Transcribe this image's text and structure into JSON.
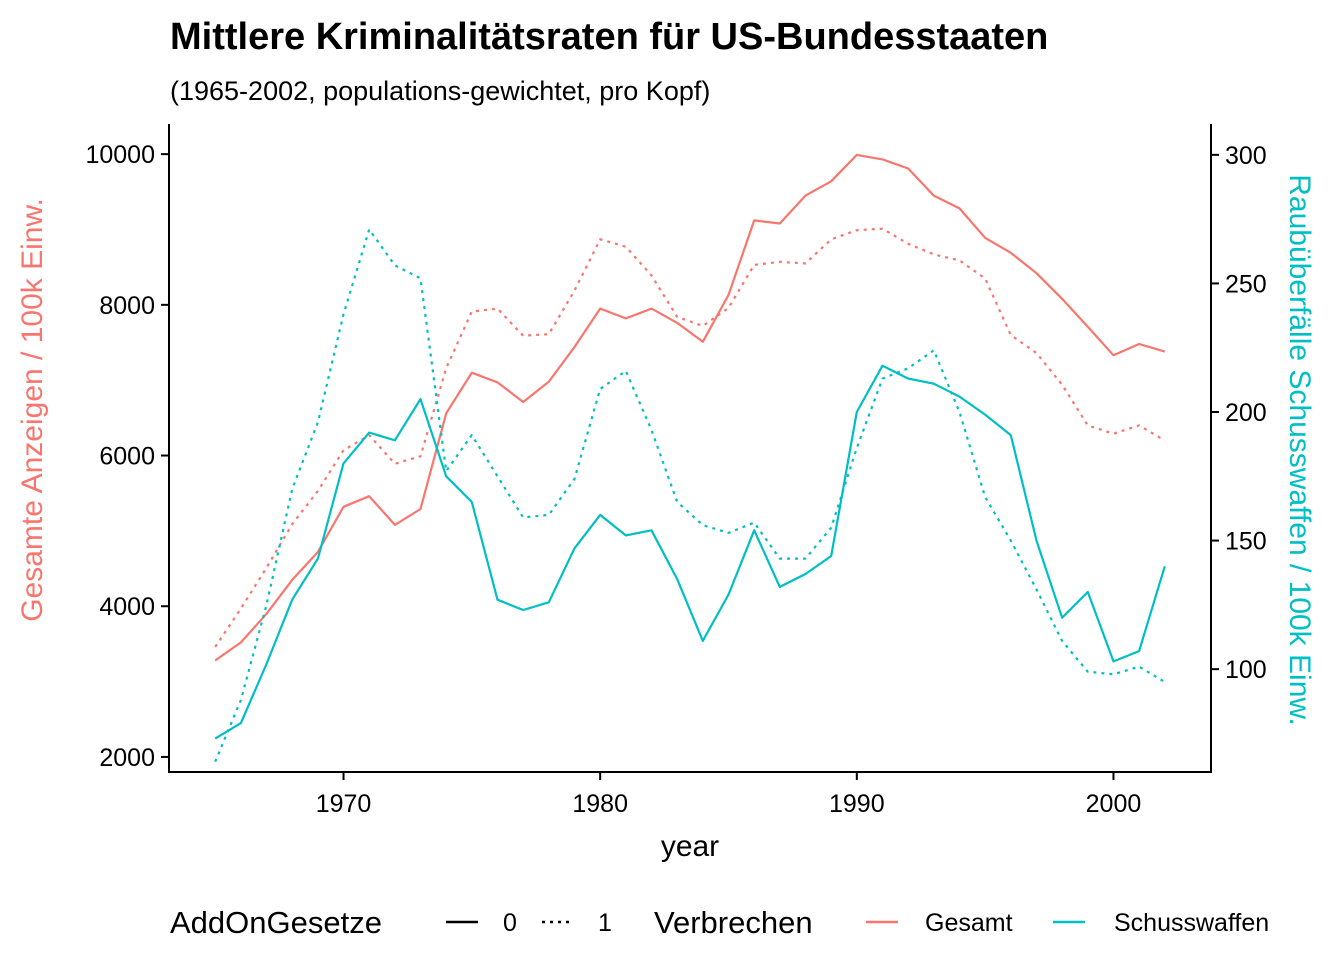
{
  "chart_data": {
    "type": "line",
    "title": "Mittlere Kriminalitätsraten für US-Bundesstaaten",
    "subtitle": "(1965-2002, populations-gewichtet, pro Kopf)",
    "xlabel": "year",
    "ylabel_left": "Gesamte Anzeigen / 100k Einw.",
    "ylabel_right": "Raubüberfälle Schusswaffen / 100k Einw.",
    "xlim": [
      1963.2,
      2003.8
    ],
    "ylim_left": [
      1800,
      10400
    ],
    "ylim_right": [
      60,
      312
    ],
    "x_ticks": [
      1970,
      1980,
      1990,
      2000
    ],
    "y_ticks_left": [
      2000,
      4000,
      6000,
      8000,
      10000
    ],
    "y_ticks_right": [
      100,
      150,
      200,
      250,
      300
    ],
    "grid": false,
    "legend_position": "bottom",
    "colors": {
      "gesamt": "#F8766D",
      "schusswaffen": "#00BFC4",
      "axis_left_title": "#F8766D",
      "axis_right_title": "#00BFC4"
    },
    "legend": {
      "linetype_title": "AddOnGesetze",
      "linetype_items": [
        {
          "label": "0",
          "dash": "solid"
        },
        {
          "label": "1",
          "dash": "dotted"
        }
      ],
      "color_title": "Verbrechen",
      "color_items": [
        {
          "label": "Gesamt",
          "color": "#F8766D"
        },
        {
          "label": "Schusswaffen",
          "color": "#00BFC4"
        }
      ]
    },
    "x": [
      1965,
      1966,
      1967,
      1968,
      1969,
      1970,
      1971,
      1972,
      1973,
      1974,
      1975,
      1976,
      1977,
      1978,
      1979,
      1980,
      1981,
      1982,
      1983,
      1984,
      1985,
      1986,
      1987,
      1988,
      1989,
      1990,
      1991,
      1992,
      1993,
      1994,
      1995,
      1996,
      1997,
      1998,
      1999,
      2000,
      2001,
      2002
    ],
    "series": [
      {
        "name": "Gesamt",
        "add_on_gesetze": "0",
        "axis": "left",
        "dash": "solid",
        "color": "#F8766D",
        "values": [
          3280,
          3520,
          3900,
          4350,
          4720,
          5320,
          5460,
          5080,
          5290,
          6560,
          7100,
          6970,
          6710,
          6980,
          7440,
          7950,
          7820,
          7950,
          7760,
          7510,
          8130,
          9120,
          9080,
          9450,
          9640,
          9990,
          9930,
          9810,
          9450,
          9280,
          8890,
          8690,
          8420,
          8080,
          7710,
          7330,
          7480,
          7380
        ]
      },
      {
        "name": "Gesamt",
        "add_on_gesetze": "1",
        "axis": "left",
        "dash": "dotted",
        "color": "#F8766D",
        "values": [
          3460,
          3970,
          4510,
          5090,
          5530,
          6070,
          6270,
          5890,
          5990,
          7160,
          7910,
          7950,
          7590,
          7610,
          8190,
          8870,
          8770,
          8390,
          7840,
          7720,
          7960,
          8530,
          8570,
          8550,
          8870,
          8990,
          9010,
          8810,
          8670,
          8590,
          8350,
          7600,
          7360,
          6940,
          6400,
          6290,
          6400,
          6200
        ]
      },
      {
        "name": "Schusswaffen",
        "add_on_gesetze": "0",
        "axis": "right",
        "dash": "solid",
        "color": "#00BFC4",
        "values": [
          73,
          79,
          102,
          127,
          143,
          180,
          192,
          189,
          205,
          175,
          165,
          127,
          123,
          126,
          147,
          160,
          152,
          154,
          135,
          111,
          129,
          154,
          132,
          137,
          144,
          200,
          218,
          213,
          211,
          206,
          199,
          191,
          150,
          120,
          130,
          103,
          107,
          140
        ]
      },
      {
        "name": "Schusswaffen",
        "add_on_gesetze": "1",
        "axis": "right",
        "dash": "dotted",
        "color": "#00BFC4",
        "values": [
          64,
          88,
          125,
          170,
          196,
          238,
          271,
          257,
          252,
          177,
          191,
          175,
          159,
          160,
          174,
          209,
          216,
          193,
          165,
          156,
          153,
          157,
          143,
          143,
          155,
          186,
          213,
          217,
          224,
          200,
          167,
          150,
          131,
          111,
          99,
          98,
          101,
          95
        ]
      }
    ]
  }
}
